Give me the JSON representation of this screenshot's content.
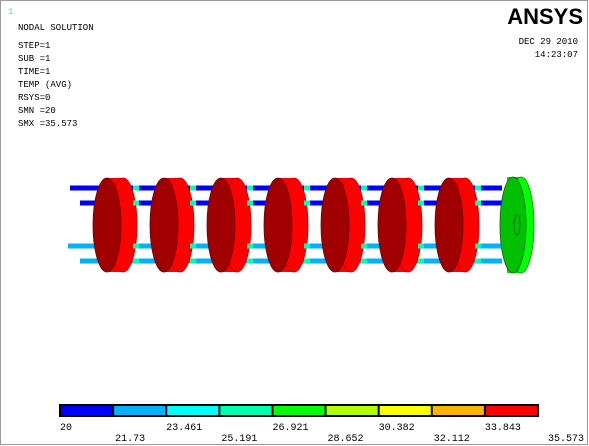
{
  "window_number": "1",
  "logo": "ANSYS",
  "info": [
    "NODAL SOLUTION",
    "STEP=1",
    "SUB =1",
    "TIME=1",
    "TEMP      (AVG)",
    "RSYS=0",
    "SMN =20",
    "SMX =35.573"
  ],
  "date": "DEC 29 2010",
  "time": "14:23:07",
  "legend": {
    "levels": [
      20,
      21.73,
      23.461,
      25.191,
      26.921,
      28.652,
      30.382,
      32.112,
      33.843,
      35.573
    ],
    "colors": [
      "#0000ff",
      "#00b2ff",
      "#00ffff",
      "#00ffb2",
      "#00ff00",
      "#b2ff00",
      "#ffff00",
      "#ffb200",
      "#ff0000"
    ]
  }
}
